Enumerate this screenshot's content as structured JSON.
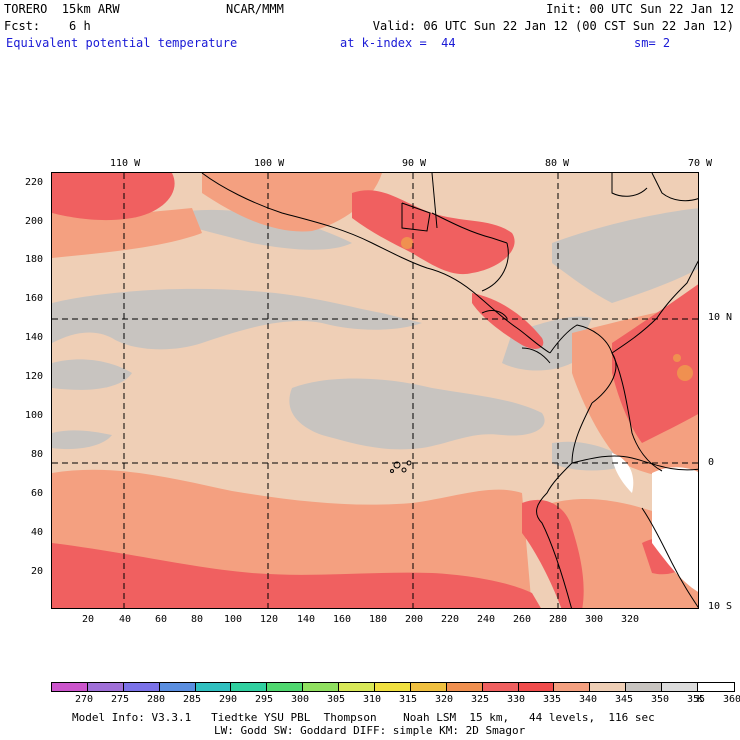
{
  "header": {
    "model": "TORERO  15km ARW",
    "center": "NCAR/MMM",
    "init": "Init: 00 UTC Sun 22 Jan 12",
    "fcst": "Fcst:    6 h",
    "valid": "Valid: 06 UTC Sun 22 Jan 12 (00 CST Sun 22 Jan 12)",
    "field": "Equivalent potential temperature",
    "level": "at k-index =  44",
    "smooth": "sm= 2"
  },
  "map": {
    "lon_labels": [
      "110 W",
      "100 W",
      "90 W",
      "80 W",
      "70 W"
    ],
    "lat_labels": [
      "10 N",
      "0",
      "10 S"
    ],
    "x_ticks": [
      "20",
      "40",
      "60",
      "80",
      "100",
      "120",
      "140",
      "160",
      "180",
      "200",
      "220",
      "240",
      "260",
      "280",
      "300",
      "320"
    ],
    "y_ticks": [
      "220",
      "200",
      "180",
      "160",
      "140",
      "120",
      "100",
      "80",
      "60",
      "40",
      "20"
    ]
  },
  "colorbar": {
    "unit": "K",
    "levels": [
      "270",
      "275",
      "280",
      "285",
      "290",
      "295",
      "300",
      "305",
      "310",
      "315",
      "320",
      "325",
      "330",
      "335",
      "340",
      "345",
      "350",
      "355",
      "360"
    ],
    "colors": [
      "#cc55cc",
      "#a070d8",
      "#7b72e8",
      "#5a8ee0",
      "#30c0c0",
      "#30d0a0",
      "#50d870",
      "#90e060",
      "#d8e858",
      "#f0e040",
      "#f0c040",
      "#f09050",
      "#f06060",
      "#f04c4c",
      "#f4a080",
      "#efcfb6",
      "#c8c4c0",
      "#dcdcdc",
      "#ffffff"
    ]
  },
  "footer": {
    "line1": "Model Info: V3.3.1   Tiedtke YSU PBL  Thompson    Noah LSM  15 km,   44 levels,  116 sec",
    "line2": "LW: Godd SW: Goddard DIFF: simple KM: 2D Smagor"
  }
}
